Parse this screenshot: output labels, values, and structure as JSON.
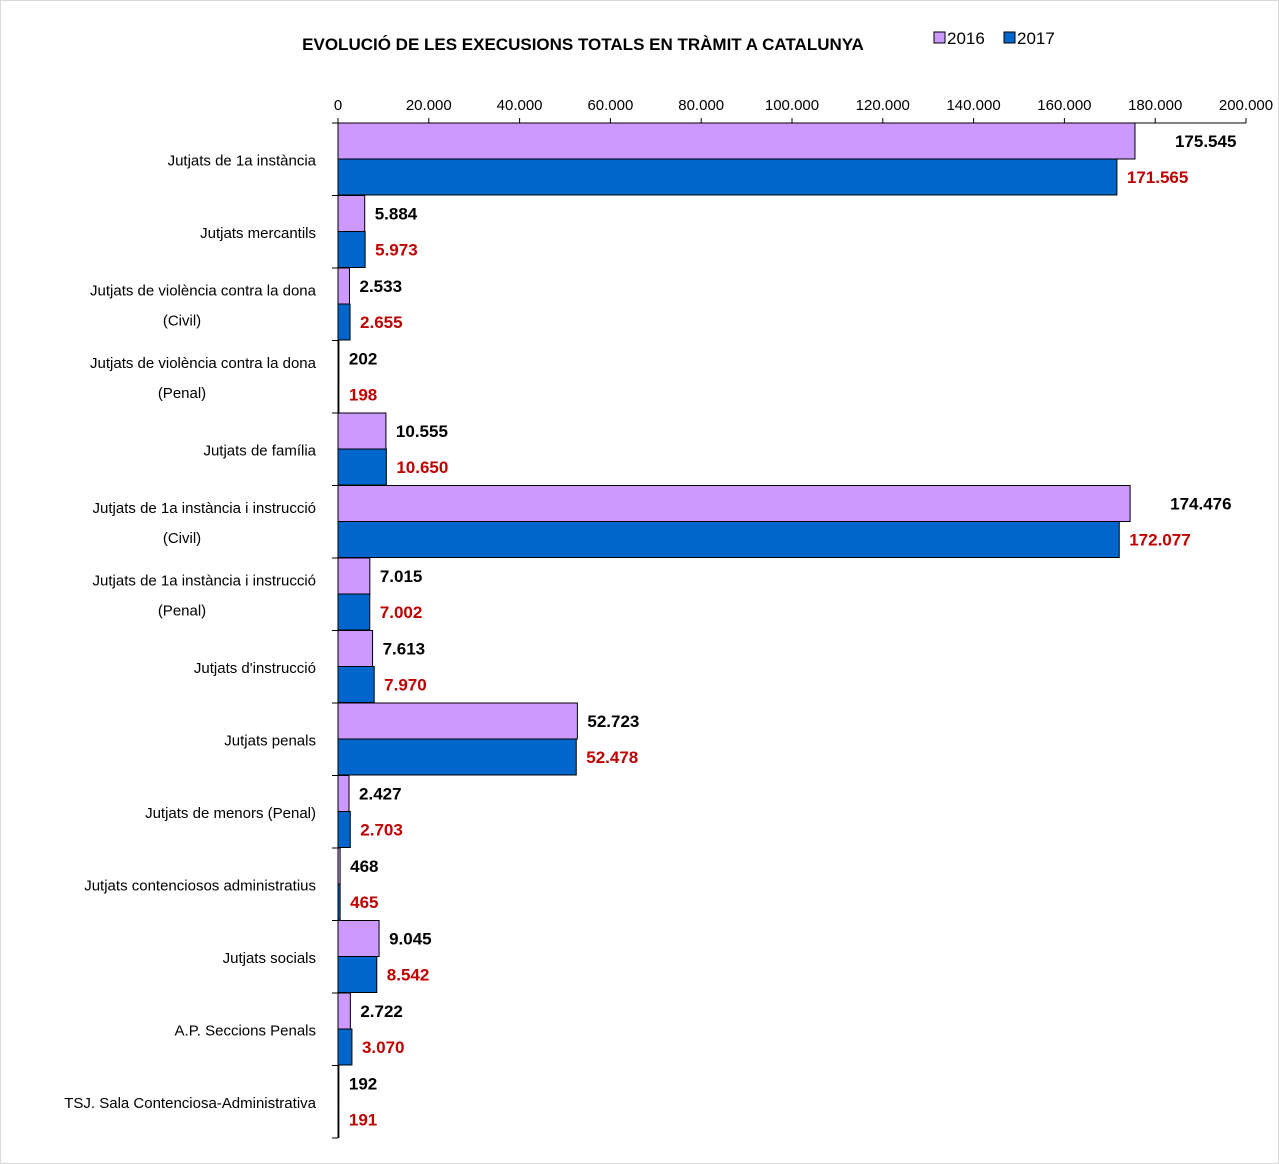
{
  "chart_data": {
    "type": "bar",
    "orientation": "horizontal",
    "title": "EVOLUCIÓ DE LES EXECUSIONS TOTALS EN TRÀMIT A CATALUNYA",
    "categories": [
      [
        "Jutjats de 1a instància"
      ],
      [
        "Jutjats  mercantils"
      ],
      [
        "Jutjats de violència contra la dona",
        "(Civil)"
      ],
      [
        "Jutjats de violència contra la dona",
        "(Penal)"
      ],
      [
        "Jutjats de família"
      ],
      [
        "Jutjats de 1a instància  i instrucció",
        "(Civil)"
      ],
      [
        "Jutjats de 1a instància  i instrucció",
        "(Penal)"
      ],
      [
        "Jutjats d'instrucció"
      ],
      [
        "Jutjats  penals"
      ],
      [
        "Jutjats de menors (Penal)"
      ],
      [
        "Jutjats contenciosos administratius"
      ],
      [
        "Jutjats  socials"
      ],
      [
        "A.P. Seccions Penals"
      ],
      [
        "TSJ. Sala Contenciosa-Administrativa"
      ]
    ],
    "series": [
      {
        "name": "2016",
        "color": "#cc99ff",
        "label_color": "#000000",
        "values": [
          175545,
          5884,
          2533,
          202,
          10555,
          174476,
          7015,
          7613,
          52723,
          2427,
          468,
          9045,
          2722,
          192
        ],
        "labels": [
          "175.545",
          "5.884",
          "2.533",
          "202",
          "10.555",
          "174.476",
          "7.015",
          "7.613",
          "52.723",
          "2.427",
          "468",
          "9.045",
          "2.722",
          "192"
        ]
      },
      {
        "name": "2017",
        "color": "#0066cc",
        "label_color": "#c00000",
        "values": [
          171565,
          5973,
          2655,
          198,
          10650,
          172077,
          7002,
          7970,
          52478,
          2703,
          465,
          8542,
          3070,
          191
        ],
        "labels": [
          "171.565",
          "5.973",
          "2.655",
          "198",
          "10.650",
          "172.077",
          "7.002",
          "7.970",
          "52.478",
          "2.703",
          "465",
          "8.542",
          "3.070",
          "191"
        ]
      }
    ],
    "x_axis": {
      "position": "top",
      "range": [
        0,
        200000
      ],
      "ticks": [
        0,
        20000,
        40000,
        60000,
        80000,
        100000,
        120000,
        140000,
        160000,
        180000,
        200000
      ],
      "tick_labels": [
        "0",
        "20.000",
        "40.000",
        "60.000",
        "80.000",
        "100.000",
        "120.000",
        "140.000",
        "160.000",
        "180.000",
        "200.000"
      ]
    },
    "grid": false,
    "legend": "top-right"
  }
}
